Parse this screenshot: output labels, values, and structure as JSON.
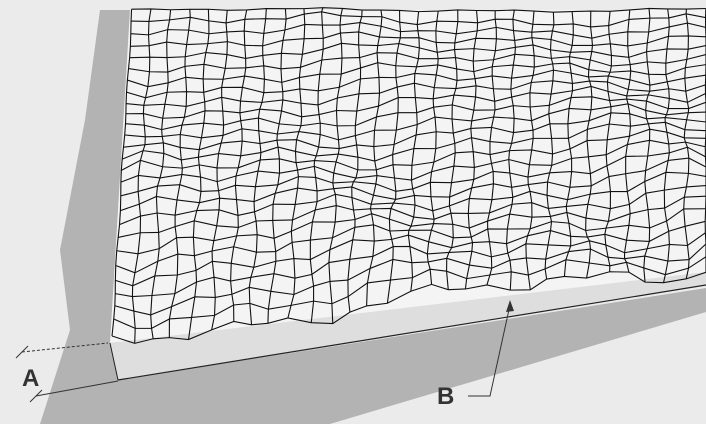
{
  "labels": {
    "a": "A",
    "b": "B"
  }
}
